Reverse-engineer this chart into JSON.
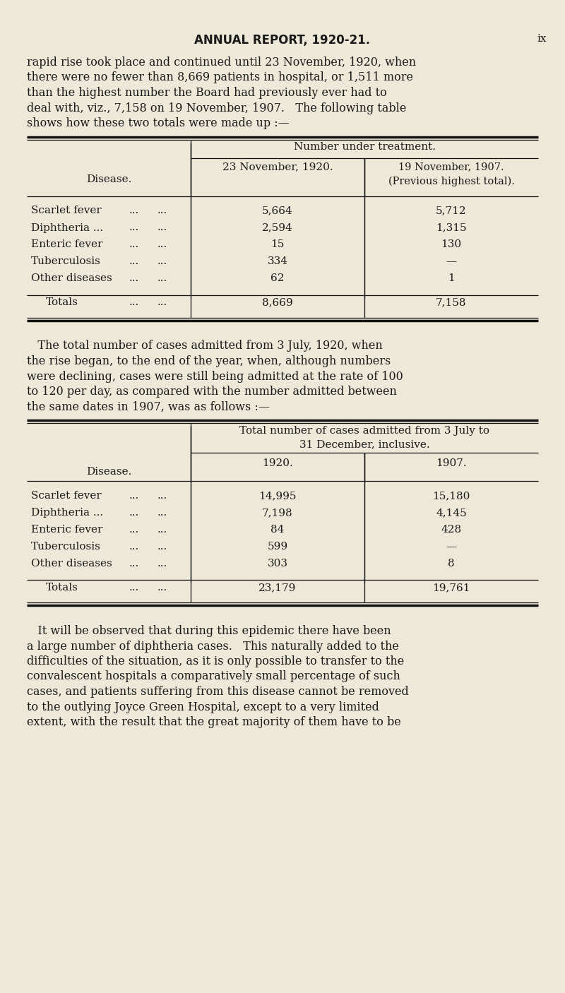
{
  "bg_color": "#ede8d8",
  "text_color": "#1a1a1a",
  "page_header": "ANNUAL REPORT, 1920-21.",
  "page_num": "ix",
  "para1_lines": [
    "rapid rise took place and continued until 23 November, 1920, when",
    "there were no fewer than 8,669 patients in hospital, or 1,511 more",
    "than the highest number the Board had previously ever had to",
    "deal with, viz., 7,158 on 19 November, 1907.   The following table",
    "shows how these two totals were made up :—"
  ],
  "t1_header0": "Number under treatment.",
  "t1_header1_c0": "Disease.",
  "t1_header1_c1": "23 November, 1920.",
  "t1_header1_c2": "19 November, 1907.\n(Previous highest total).",
  "t1_rows": [
    [
      "Scarlet fever",
      "...",
      "...",
      "5,664",
      "5,712"
    ],
    [
      "Diphtheria ...",
      "...",
      "...",
      "2,594",
      "1,315"
    ],
    [
      "Enteric fever",
      "...",
      "...",
      "15",
      "130"
    ],
    [
      "Tuberculosis",
      "...",
      "...",
      "334",
      "—"
    ],
    [
      "Other diseases",
      "...",
      "...",
      "62",
      "1"
    ]
  ],
  "t1_total": [
    "Totals",
    "...",
    "...",
    "8,669",
    "7,158"
  ],
  "para2_lines": [
    "   The total number of cases admitted from 3 July, 1920, when",
    "the rise began, to the end of the year, when, although numbers",
    "were declining, cases were still being admitted at the rate of 100",
    "to 120 per day, as compared with the number admitted between",
    "the same dates in 1907, was as follows :—"
  ],
  "t2_header0": "Total number of cases admitted from 3 July to\n31 December, inclusive.",
  "t2_header1_c0": "Disease.",
  "t2_header1_c1": "1920.",
  "t2_header1_c2": "1907.",
  "t2_rows": [
    [
      "Scarlet fever",
      "...",
      "...",
      "14,995",
      "15,180"
    ],
    [
      "Diphtheria ...",
      "...",
      "...",
      "7,198",
      "4,145"
    ],
    [
      "Enteric fever",
      "...",
      "...",
      "84",
      "428"
    ],
    [
      "Tuberculosis",
      "...",
      "...",
      "599",
      "—"
    ],
    [
      "Other diseases",
      "...",
      "...",
      "303",
      "8"
    ]
  ],
  "t2_total": [
    "Totals",
    "...",
    "...",
    "23,179",
    "19,761"
  ],
  "para3_lines": [
    "   It will be observed that during this epidemic there have been",
    "a large number of diphtheria cases.   This naturally added to the",
    "difficulties of the situation, as it is only possible to transfer to the",
    "convalescent hospitals a comparatively small percentage of such",
    "cases, and patients suffering from this disease cannot be removed",
    "to the outlying Joyce Green Hospital, except to a very limited",
    "extent, with the result that the great majority of them have to be"
  ]
}
